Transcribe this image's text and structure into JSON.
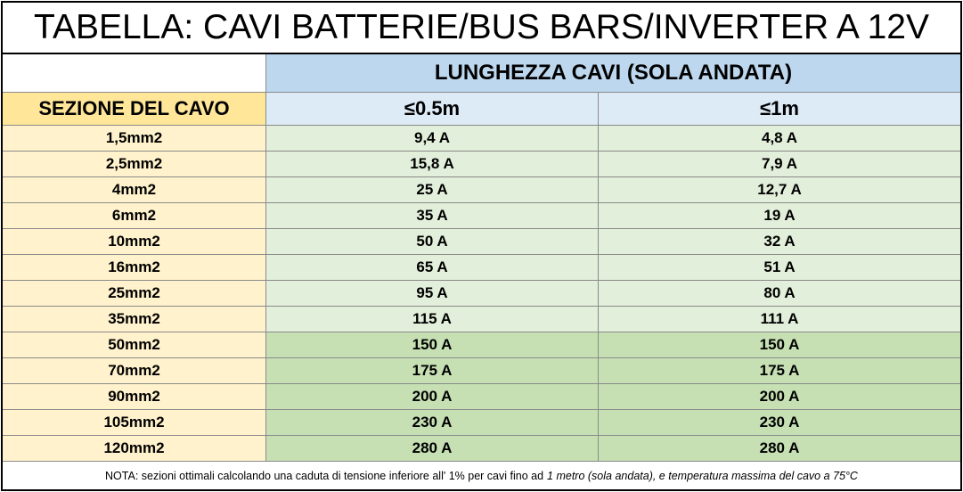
{
  "title": "TABELLA: CAVI BATTERIE/BUS BARS/INVERTER A 12V",
  "table": {
    "group_header": "LUNGHEZZA CAVI (SOLA ANDATA)",
    "columns": [
      "SEZIONE DEL CAVO",
      "≤0.5m",
      "≤1m"
    ],
    "rows": [
      [
        "1,5mm2",
        "9,4 A",
        "4,8 A"
      ],
      [
        "2,5mm2",
        "15,8 A",
        "7,9 A"
      ],
      [
        "4mm2",
        "25 A",
        "12,7 A"
      ],
      [
        "6mm2",
        "35 A",
        "19 A"
      ],
      [
        "10mm2",
        "50 A",
        "32 A"
      ],
      [
        "16mm2",
        "65 A",
        "51 A"
      ],
      [
        "25mm2",
        "95 A",
        "80 A"
      ],
      [
        "35mm2",
        "115 A",
        "111 A"
      ],
      [
        "50mm2",
        "150 A",
        "150 A"
      ],
      [
        "70mm2",
        "175 A",
        "175 A"
      ],
      [
        "90mm2",
        "200 A",
        "200 A"
      ],
      [
        "105mm2",
        "230 A",
        "230 A"
      ],
      [
        "120mm2",
        "280 A",
        "280 A"
      ]
    ]
  },
  "note": {
    "text": "NOTA: sezioni ottimali calcolando una caduta di tensione inferiore all' 1% per cavi fino ad",
    "italic": "1 metro (sola andata), e temperatura massima del cavo a 75°C"
  }
}
